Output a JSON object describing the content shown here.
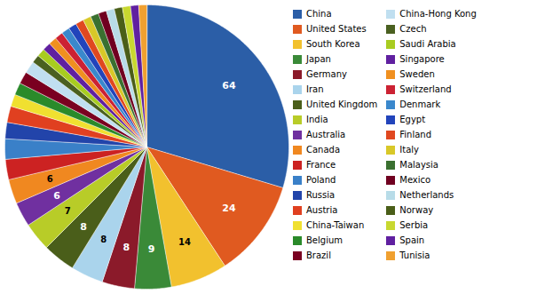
{
  "chart_data": {
    "type": "pie",
    "categories": [
      "China",
      "United States",
      "South Korea",
      "Japan",
      "Germany",
      "Iran",
      "United Kingdom",
      "India",
      "Australia",
      "Canada",
      "France",
      "Poland",
      "Russia",
      "Austria",
      "China-Taiwan",
      "Belgium",
      "Brazil",
      "China-Hong Kong",
      "Czech",
      "Saudi Arabia",
      "Singapore",
      "Sweden",
      "Switzerland",
      "Denmark",
      "Egypt",
      "Finland",
      "Italy",
      "Malaysia",
      "Mexico",
      "Netherlands",
      "Norway",
      "Serbia",
      "Spain",
      "Tunisia"
    ],
    "values": [
      64,
      24,
      14,
      9,
      8,
      8,
      8,
      7,
      6,
      6,
      5,
      5,
      4,
      4,
      3,
      3,
      3,
      3,
      2,
      2,
      2,
      2,
      2,
      2,
      2,
      2,
      2,
      2,
      2,
      2,
      2,
      2,
      2,
      2
    ],
    "value_labels": [
      "64",
      "24",
      "14",
      "9",
      "8",
      "8",
      "8",
      "7",
      "6",
      "6",
      null,
      null,
      null,
      null,
      null,
      null,
      null,
      null,
      null,
      null,
      null,
      null,
      null,
      null,
      null,
      null,
      null,
      null,
      null,
      null,
      null,
      null,
      null,
      null
    ],
    "colors": [
      "#2b5ea7",
      "#e05a20",
      "#f2c12e",
      "#3a8a38",
      "#8b1a2a",
      "#aad4ec",
      "#4a5e1a",
      "#b8cc28",
      "#7030a0",
      "#f08820",
      "#cc2222",
      "#3a80c8",
      "#2244aa",
      "#e04020",
      "#f0e030",
      "#2a8a2a",
      "#7a0020",
      "#c0dff0",
      "#4a6020",
      "#a8cc20",
      "#6020a0",
      "#f09020",
      "#cc2233",
      "#3a88cc",
      "#2244bb",
      "#e04820",
      "#d8c828",
      "#3a7030",
      "#700020",
      "#b8dce8",
      "#4a5e18",
      "#c8d830",
      "#6020a0",
      "#f0a030"
    ],
    "data_labels": true,
    "legend": "right"
  }
}
